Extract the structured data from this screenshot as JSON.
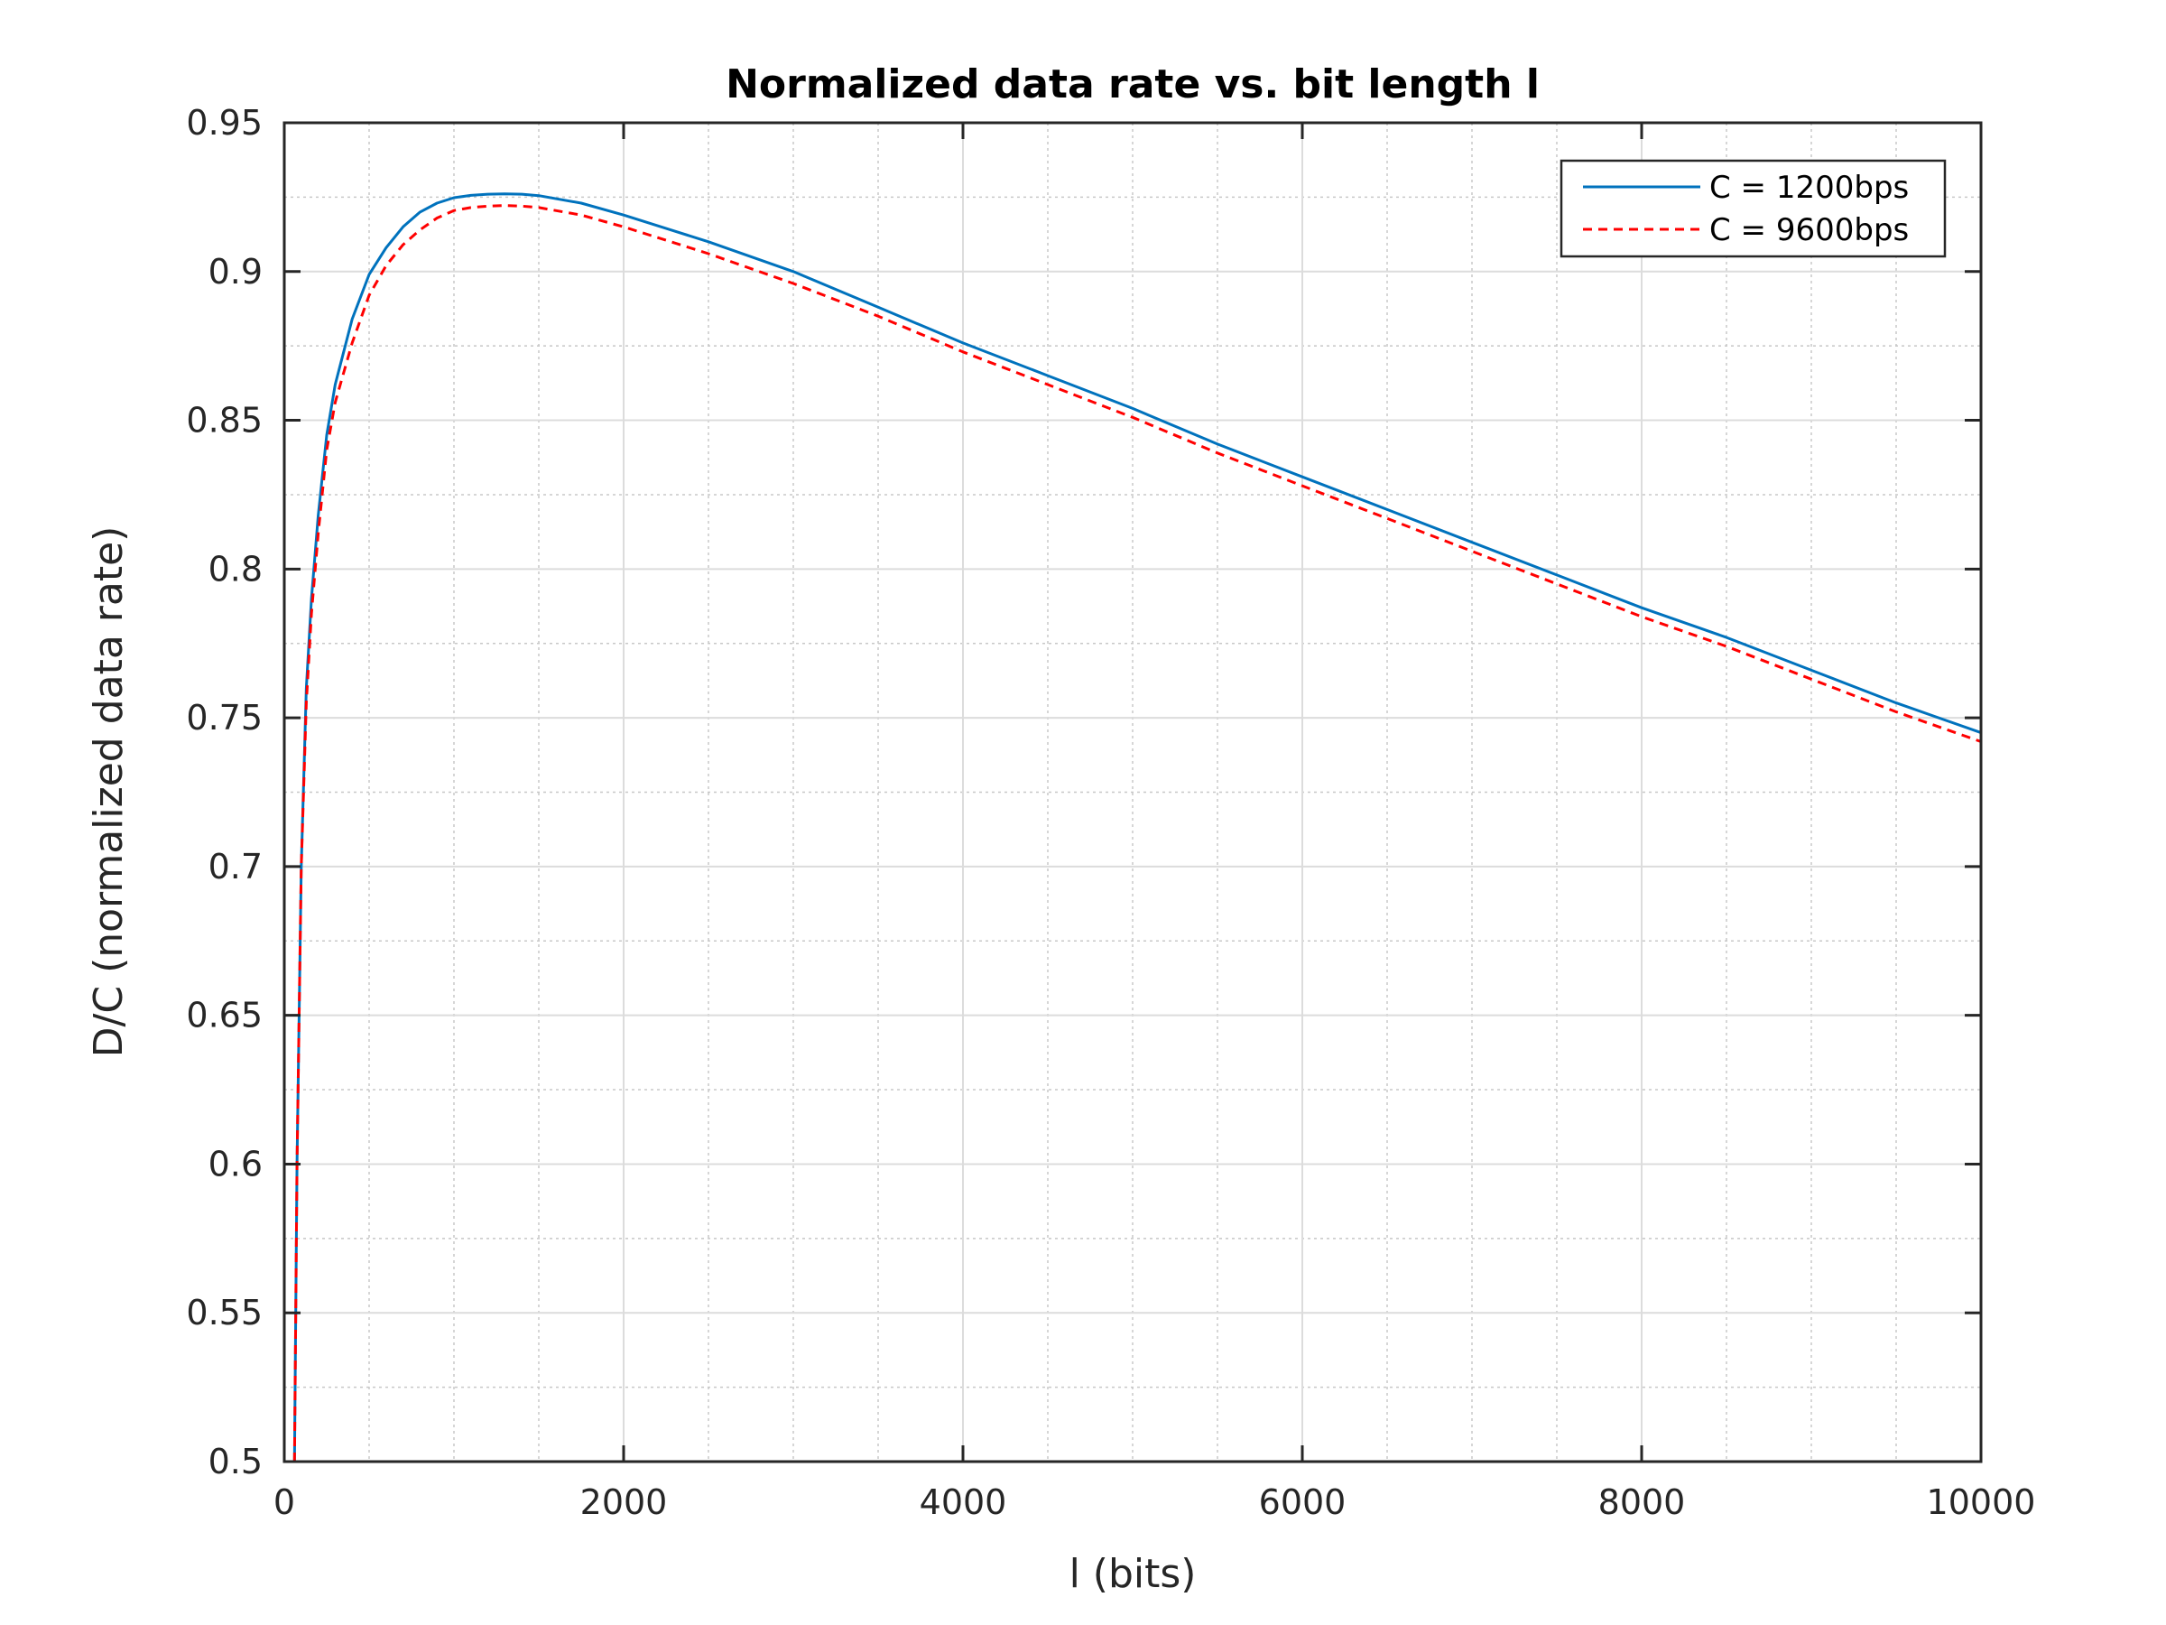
{
  "chart_data": {
    "type": "line",
    "title": "Normalized data rate vs. bit length l",
    "xlabel": "l (bits)",
    "ylabel": "D/C (normalized data rate)",
    "xlim": [
      0,
      10000
    ],
    "ylim": [
      0.5,
      0.95
    ],
    "xticks": [
      0,
      2000,
      4000,
      6000,
      8000,
      10000
    ],
    "xtick_labels": [
      "0",
      "2000",
      "4000",
      "6000",
      "8000",
      "10000"
    ],
    "yticks": [
      0.5,
      0.55,
      0.6,
      0.65,
      0.7,
      0.75,
      0.8,
      0.85,
      0.9,
      0.95
    ],
    "ytick_labels": [
      "0.5",
      "0.55",
      "0.6",
      "0.65",
      "0.7",
      "0.75",
      "0.8",
      "0.85",
      "0.9",
      "0.95"
    ],
    "grid": true,
    "minor_grid": true,
    "legend_position": "top-right",
    "series": [
      {
        "name": "C = 1200bps",
        "color": "#0072BD",
        "style": "solid",
        "x": [
          60,
          75,
          100,
          130,
          160,
          200,
          250,
          300,
          400,
          500,
          600,
          700,
          800,
          900,
          1000,
          1100,
          1200,
          1300,
          1400,
          1500,
          1750,
          2000,
          2500,
          3000,
          3500,
          4000,
          4500,
          5000,
          5500,
          6000,
          6500,
          7000,
          7500,
          8000,
          8500,
          9000,
          9500,
          10000
        ],
        "y": [
          0.5,
          0.6,
          0.7,
          0.76,
          0.79,
          0.818,
          0.845,
          0.862,
          0.884,
          0.899,
          0.908,
          0.915,
          0.92,
          0.923,
          0.9248,
          0.9256,
          0.926,
          0.9261,
          0.926,
          0.9255,
          0.923,
          0.919,
          0.91,
          0.9,
          0.888,
          0.876,
          0.865,
          0.854,
          0.842,
          0.831,
          0.82,
          0.809,
          0.798,
          0.787,
          0.777,
          0.766,
          0.755,
          0.745
        ]
      },
      {
        "name": "C = 9600bps",
        "color": "#FF0000",
        "style": "dashed",
        "x": [
          60,
          75,
          100,
          130,
          160,
          200,
          250,
          300,
          400,
          500,
          600,
          700,
          800,
          900,
          1000,
          1100,
          1200,
          1300,
          1400,
          1500,
          1750,
          2000,
          2500,
          3000,
          3500,
          4000,
          4500,
          5000,
          5500,
          6000,
          6500,
          7000,
          7500,
          8000,
          8500,
          9000,
          9500,
          10000
        ],
        "y": [
          0.5,
          0.6,
          0.7,
          0.755,
          0.785,
          0.812,
          0.84,
          0.856,
          0.876,
          0.892,
          0.902,
          0.909,
          0.914,
          0.918,
          0.9205,
          0.9215,
          0.922,
          0.9222,
          0.922,
          0.9215,
          0.919,
          0.915,
          0.906,
          0.896,
          0.885,
          0.873,
          0.862,
          0.851,
          0.839,
          0.828,
          0.817,
          0.806,
          0.795,
          0.784,
          0.774,
          0.763,
          0.752,
          0.742
        ]
      }
    ]
  }
}
